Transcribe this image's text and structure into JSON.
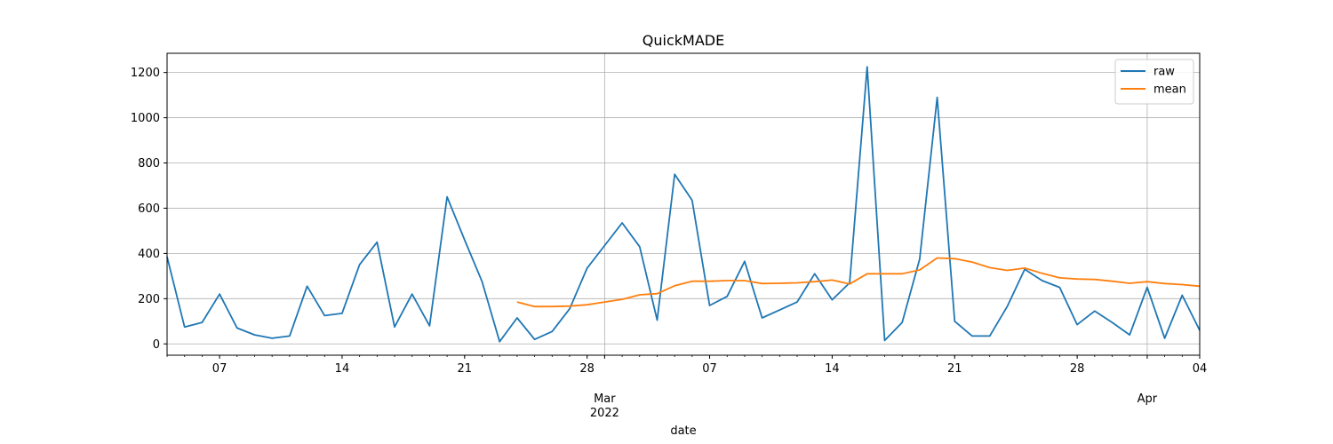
{
  "chart_data": {
    "type": "line",
    "title": "QuickMADE",
    "xlabel": "date",
    "ylabel": "",
    "x_start": "2022-02-04",
    "x_range": [
      "2022-02-04",
      "2022-04-04"
    ],
    "ylim": [
      -50,
      1285
    ],
    "grid": true,
    "legend_position": "top-right",
    "y_ticks": [
      0,
      200,
      400,
      600,
      800,
      1000,
      1200
    ],
    "x_major_ticks": [
      {
        "date": "2022-02-07",
        "label": "07"
      },
      {
        "date": "2022-02-14",
        "label": "14"
      },
      {
        "date": "2022-02-21",
        "label": "21"
      },
      {
        "date": "2022-02-28",
        "label": "28"
      },
      {
        "date": "2022-03-07",
        "label": "07"
      },
      {
        "date": "2022-03-14",
        "label": "14"
      },
      {
        "date": "2022-03-21",
        "label": "21"
      },
      {
        "date": "2022-03-28",
        "label": "28"
      },
      {
        "date": "2022-04-04",
        "label": "04"
      }
    ],
    "x_month_labels": [
      {
        "date": "2022-03-01",
        "label": "Mar",
        "sublabel": "2022"
      },
      {
        "date": "2022-04-01",
        "label": "Apr",
        "sublabel": ""
      }
    ],
    "x_vertical_grid": [
      "2022-03-01",
      "2022-04-01"
    ],
    "series": [
      {
        "name": "raw",
        "color": "#1f77b4",
        "x": [
          "2022-02-04",
          "2022-02-05",
          "2022-02-06",
          "2022-02-07",
          "2022-02-08",
          "2022-02-09",
          "2022-02-10",
          "2022-02-11",
          "2022-02-12",
          "2022-02-13",
          "2022-02-14",
          "2022-02-15",
          "2022-02-16",
          "2022-02-17",
          "2022-02-18",
          "2022-02-19",
          "2022-02-20",
          "2022-02-21",
          "2022-02-22",
          "2022-02-23",
          "2022-02-24",
          "2022-02-25",
          "2022-02-26",
          "2022-02-27",
          "2022-02-28",
          "2022-03-01",
          "2022-03-02",
          "2022-03-03",
          "2022-03-04",
          "2022-03-05",
          "2022-03-06",
          "2022-03-07",
          "2022-03-08",
          "2022-03-09",
          "2022-03-10",
          "2022-03-11",
          "2022-03-12",
          "2022-03-13",
          "2022-03-14",
          "2022-03-15",
          "2022-03-16",
          "2022-03-17",
          "2022-03-18",
          "2022-03-19",
          "2022-03-20",
          "2022-03-21",
          "2022-03-22",
          "2022-03-23",
          "2022-03-24",
          "2022-03-25",
          "2022-03-26",
          "2022-03-27",
          "2022-03-28",
          "2022-03-29",
          "2022-03-30",
          "2022-03-31",
          "2022-04-01",
          "2022-04-02",
          "2022-04-03",
          "2022-04-04"
        ],
        "values": [
          385,
          75,
          95,
          220,
          70,
          40,
          25,
          35,
          255,
          125,
          135,
          350,
          450,
          75,
          220,
          80,
          650,
          460,
          275,
          10,
          115,
          20,
          55,
          155,
          335,
          435,
          535,
          430,
          105,
          750,
          635,
          170,
          210,
          365,
          115,
          150,
          185,
          310,
          195,
          270,
          1225,
          15,
          95,
          375,
          1090,
          100,
          35,
          35,
          165,
          330,
          280,
          250,
          85,
          145,
          95,
          40,
          250,
          25,
          215,
          60
        ]
      },
      {
        "name": "mean",
        "color": "#ff7f0e",
        "x": [
          "2022-02-24",
          "2022-02-25",
          "2022-02-26",
          "2022-02-27",
          "2022-02-28",
          "2022-03-01",
          "2022-03-02",
          "2022-03-03",
          "2022-03-04",
          "2022-03-05",
          "2022-03-06",
          "2022-03-07",
          "2022-03-08",
          "2022-03-09",
          "2022-03-10",
          "2022-03-11",
          "2022-03-12",
          "2022-03-13",
          "2022-03-14",
          "2022-03-15",
          "2022-03-16",
          "2022-03-17",
          "2022-03-18",
          "2022-03-19",
          "2022-03-20",
          "2022-03-21",
          "2022-03-22",
          "2022-03-23",
          "2022-03-24",
          "2022-03-25",
          "2022-03-26",
          "2022-03-27",
          "2022-03-28",
          "2022-03-29",
          "2022-03-30",
          "2022-03-31",
          "2022-04-01",
          "2022-04-02",
          "2022-04-03",
          "2022-04-04"
        ],
        "values": [
          185,
          165,
          165,
          167,
          173,
          185,
          197,
          217,
          222,
          257,
          277,
          277,
          280,
          280,
          267,
          268,
          270,
          275,
          282,
          265,
          310,
          310,
          310,
          327,
          380,
          377,
          362,
          337,
          325,
          335,
          312,
          292,
          287,
          285,
          277,
          268,
          275,
          267,
          262,
          255
        ]
      }
    ]
  }
}
